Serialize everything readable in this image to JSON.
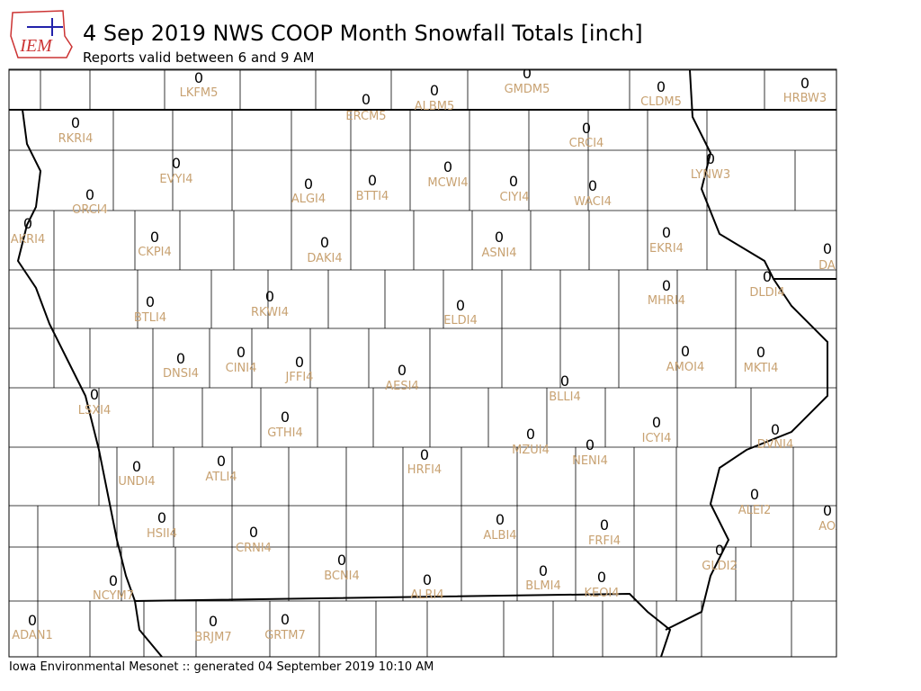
{
  "header": {
    "logo": "IEM",
    "title": "4 Sep 2019 NWS COOP Month Snowfall Totals [inch]",
    "subtitle": "Reports valid between 6 and 9 AM"
  },
  "stations": [
    {
      "id": "LKFM5",
      "value": 0
    },
    {
      "id": "GMDM5",
      "value": 0
    },
    {
      "id": "ERCM5",
      "value": 0
    },
    {
      "id": "ALBM5",
      "value": 0
    },
    {
      "id": "CLDM5",
      "value": 0
    },
    {
      "id": "HRBW3",
      "value": 0
    },
    {
      "id": "RKRI4",
      "value": 0
    },
    {
      "id": "CRCI4",
      "value": 0
    },
    {
      "id": "LYNW3",
      "value": 0
    },
    {
      "id": "EVYI4",
      "value": 0
    },
    {
      "id": "ALGI4",
      "value": 0
    },
    {
      "id": "BTTI4",
      "value": 0
    },
    {
      "id": "MCWI4",
      "value": 0
    },
    {
      "id": "CIYI4",
      "value": 0
    },
    {
      "id": "WACI4",
      "value": 0
    },
    {
      "id": "ORCI4",
      "value": 0
    },
    {
      "id": "AKRI4",
      "value": 0
    },
    {
      "id": "CKPI4",
      "value": 0
    },
    {
      "id": "DAKI4",
      "value": 0
    },
    {
      "id": "ASNI4",
      "value": 0
    },
    {
      "id": "EKRI4",
      "value": 0
    },
    {
      "id": "DAR",
      "value": 0
    },
    {
      "id": "BTLI4",
      "value": 0
    },
    {
      "id": "RKWI4",
      "value": 0
    },
    {
      "id": "ELDI4",
      "value": 0
    },
    {
      "id": "MHRI4",
      "value": 0
    },
    {
      "id": "DLDI4",
      "value": 0
    },
    {
      "id": "DNSI4",
      "value": 0
    },
    {
      "id": "CINI4",
      "value": 0
    },
    {
      "id": "JFFI4",
      "value": 0
    },
    {
      "id": "AESI4",
      "value": 0
    },
    {
      "id": "BLLI4",
      "value": 0
    },
    {
      "id": "AMOI4",
      "value": 0
    },
    {
      "id": "MKTI4",
      "value": 0
    },
    {
      "id": "LSXI4",
      "value": 0
    },
    {
      "id": "GTHI4",
      "value": 0
    },
    {
      "id": "ICYI4",
      "value": 0
    },
    {
      "id": "DVNI4",
      "value": 0
    },
    {
      "id": "MZUI4",
      "value": 0
    },
    {
      "id": "NENI4",
      "value": 0
    },
    {
      "id": "HRFI4",
      "value": 0
    },
    {
      "id": "ATLI4",
      "value": 0
    },
    {
      "id": "UNDI4",
      "value": 0
    },
    {
      "id": "ALEI2",
      "value": 0
    },
    {
      "id": "AOA",
      "value": 0
    },
    {
      "id": "HSII4",
      "value": 0
    },
    {
      "id": "ALBI4",
      "value": 0
    },
    {
      "id": "FRFI4",
      "value": 0
    },
    {
      "id": "CRNI4",
      "value": 0
    },
    {
      "id": "GLDI2",
      "value": 0
    },
    {
      "id": "BCNI4",
      "value": 0
    },
    {
      "id": "BLMI4",
      "value": 0
    },
    {
      "id": "KEOI4",
      "value": 0
    },
    {
      "id": "ALRI4",
      "value": 0
    },
    {
      "id": "NCYM7",
      "value": 0
    },
    {
      "id": "ADAN1",
      "value": 0
    },
    {
      "id": "BRJM7",
      "value": 0
    },
    {
      "id": "GRTM7",
      "value": 0
    }
  ],
  "footer": "Iowa Environmental Mesonet :: generated 04 September 2019 10:10 AM"
}
